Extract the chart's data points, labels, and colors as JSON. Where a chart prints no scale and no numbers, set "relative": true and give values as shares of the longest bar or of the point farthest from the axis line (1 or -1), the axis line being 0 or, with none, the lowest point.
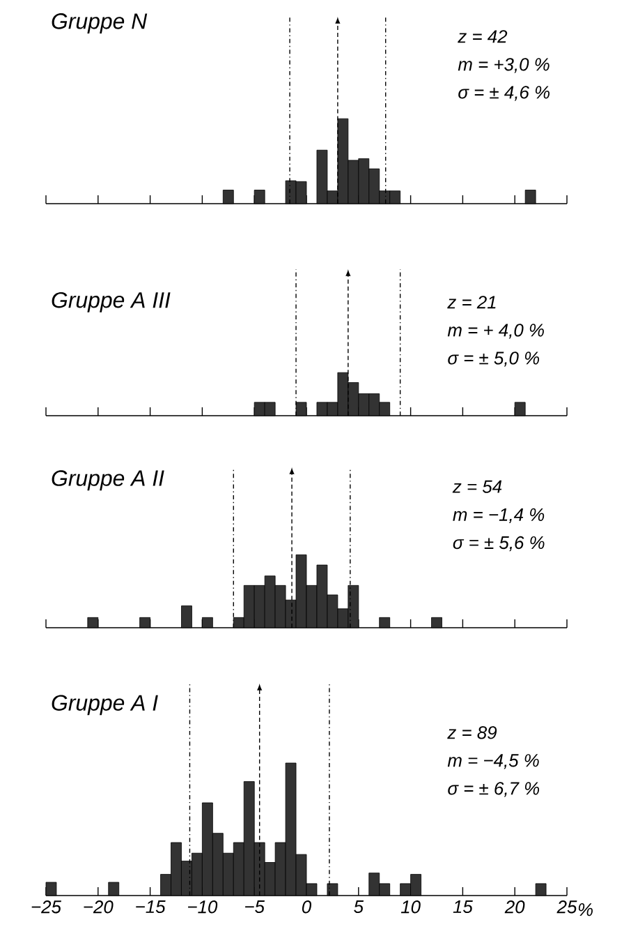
{
  "chart_data": [
    {
      "type": "bar",
      "title": "Gruppe N",
      "relative": true,
      "color": "#333333",
      "xlim": [
        -25,
        25
      ],
      "xticks": [
        {
          "value": -25,
          "label": null
        },
        {
          "value": -20,
          "label": null
        },
        {
          "value": -15,
          "label": null
        },
        {
          "value": -10,
          "label": null
        },
        {
          "value": -5,
          "label": null
        },
        {
          "value": 0,
          "label": null
        },
        {
          "value": 5,
          "label": null
        },
        {
          "value": 10,
          "label": null
        },
        {
          "value": 15,
          "label": null
        },
        {
          "value": 20,
          "label": null
        },
        {
          "value": 25,
          "label": null
        }
      ],
      "tick_labels": false,
      "x": [
        -7.5,
        -4.5,
        -1.5,
        -0.5,
        1.5,
        2.5,
        3.5,
        4.5,
        5.5,
        6.5,
        7.5,
        8.5,
        21.5
      ],
      "values": [
        0.16,
        0.16,
        0.27,
        0.26,
        0.63,
        0.15,
        1,
        0.51,
        0.53,
        0.41,
        0.15,
        0.15,
        0.16
      ],
      "ref_lines": [
        {
          "axis": "x",
          "value": -1.6,
          "line_style": "dashdot"
        },
        {
          "axis": "x",
          "value": 3.0,
          "line_style": "dashed"
        },
        {
          "axis": "x",
          "value": 7.6,
          "line_style": "dashdot"
        }
      ],
      "annotations": [
        "z = 42",
        "m = +3,0 %",
        "σ = ± 4,6 %"
      ]
    },
    {
      "type": "bar",
      "title": "Gruppe A III",
      "relative": true,
      "color": "#333333",
      "xlim": [
        -25,
        25
      ],
      "xticks": [
        {
          "value": -25,
          "label": null
        },
        {
          "value": -20,
          "label": null
        },
        {
          "value": -15,
          "label": null
        },
        {
          "value": -10,
          "label": null
        },
        {
          "value": -5,
          "label": null
        },
        {
          "value": 0,
          "label": null
        },
        {
          "value": 5,
          "label": null
        },
        {
          "value": 10,
          "label": null
        },
        {
          "value": 15,
          "label": null
        },
        {
          "value": 20,
          "label": null
        },
        {
          "value": 25,
          "label": null
        }
      ],
      "tick_labels": false,
      "x": [
        -4.5,
        -3.5,
        -0.5,
        1.5,
        2.5,
        3.5,
        4.5,
        5.5,
        6.5,
        7.5,
        20.5
      ],
      "values": [
        0.31,
        0.31,
        0.31,
        0.31,
        0.31,
        1,
        0.77,
        0.51,
        0.51,
        0.31,
        0.31
      ],
      "ref_lines": [
        {
          "axis": "x",
          "value": -1.0,
          "line_style": "dashdot"
        },
        {
          "axis": "x",
          "value": 4.0,
          "line_style": "dashed"
        },
        {
          "axis": "x",
          "value": 9.0,
          "line_style": "dashdot"
        }
      ],
      "annotations": [
        "z = 21",
        "m = + 4,0 %",
        "σ = ± 5,0 %"
      ]
    },
    {
      "type": "bar",
      "title": "Gruppe A II",
      "relative": true,
      "color": "#333333",
      "xlim": [
        -25,
        25
      ],
      "xticks": [
        {
          "value": -25,
          "label": null
        },
        {
          "value": -20,
          "label": null
        },
        {
          "value": -15,
          "label": null
        },
        {
          "value": -10,
          "label": null
        },
        {
          "value": -5,
          "label": null
        },
        {
          "value": 0,
          "label": null
        },
        {
          "value": 5,
          "label": null
        },
        {
          "value": 10,
          "label": null
        },
        {
          "value": 15,
          "label": null
        },
        {
          "value": 20,
          "label": null
        },
        {
          "value": 25,
          "label": null
        }
      ],
      "tick_labels": false,
      "x": [
        -20.5,
        -15.5,
        -11.5,
        -9.5,
        -6.5,
        -5.5,
        -4.5,
        -3.5,
        -2.5,
        -1.5,
        -0.5,
        0.5,
        1.5,
        2.5,
        3.5,
        4.5,
        7.5,
        12.5
      ],
      "values": [
        0.14,
        0.14,
        0.3,
        0.14,
        0.14,
        0.58,
        0.58,
        0.71,
        0.58,
        0.38,
        1,
        0.58,
        0.86,
        0.45,
        0.26,
        0.58,
        0.14,
        0.14
      ],
      "ref_lines": [
        {
          "axis": "x",
          "value": -7.0,
          "line_style": "dashdot"
        },
        {
          "axis": "x",
          "value": -1.4,
          "line_style": "dashed"
        },
        {
          "axis": "x",
          "value": 4.2,
          "line_style": "dashdot"
        }
      ],
      "annotations": [
        "z = 54",
        "m = −1,4 %",
        "σ = ± 5,6 %"
      ]
    },
    {
      "type": "bar",
      "title": "Gruppe A I",
      "xlabel": "%",
      "relative": true,
      "color": "#333333",
      "xlim": [
        -25,
        25
      ],
      "xticks": [
        {
          "value": -25,
          "label": "−25"
        },
        {
          "value": -20,
          "label": "−20"
        },
        {
          "value": -15,
          "label": "−15"
        },
        {
          "value": -10,
          "label": "−10"
        },
        {
          "value": -5,
          "label": "−5"
        },
        {
          "value": 0,
          "label": "0"
        },
        {
          "value": 5,
          "label": "5"
        },
        {
          "value": 10,
          "label": "10"
        },
        {
          "value": 15,
          "label": "15"
        },
        {
          "value": 20,
          "label": "20"
        },
        {
          "value": 25,
          "label": "25"
        }
      ],
      "tick_labels": "x",
      "x": [
        -24.5,
        -18.5,
        -13.5,
        -12.5,
        -11.5,
        -10.5,
        -9.5,
        -8.5,
        -7.5,
        -6.5,
        -5.5,
        -4.5,
        -3.5,
        -2.5,
        -1.5,
        -0.5,
        0.5,
        2.5,
        6.5,
        7.5,
        9.5,
        10.5,
        22.5
      ],
      "values": [
        0.1,
        0.1,
        0.16,
        0.4,
        0.26,
        0.32,
        0.7,
        0.47,
        0.32,
        0.4,
        0.86,
        0.4,
        0.25,
        0.4,
        1,
        0.31,
        0.09,
        0.09,
        0.17,
        0.09,
        0.09,
        0.16,
        0.09
      ],
      "ref_lines": [
        {
          "axis": "x",
          "value": -11.2,
          "line_style": "dashdot"
        },
        {
          "axis": "x",
          "value": -4.5,
          "line_style": "dashed"
        },
        {
          "axis": "x",
          "value": 2.2,
          "line_style": "dashdot"
        }
      ],
      "annotations": [
        "z = 89",
        "m = −4,5 %",
        "σ = ± 6,7 %"
      ]
    }
  ]
}
